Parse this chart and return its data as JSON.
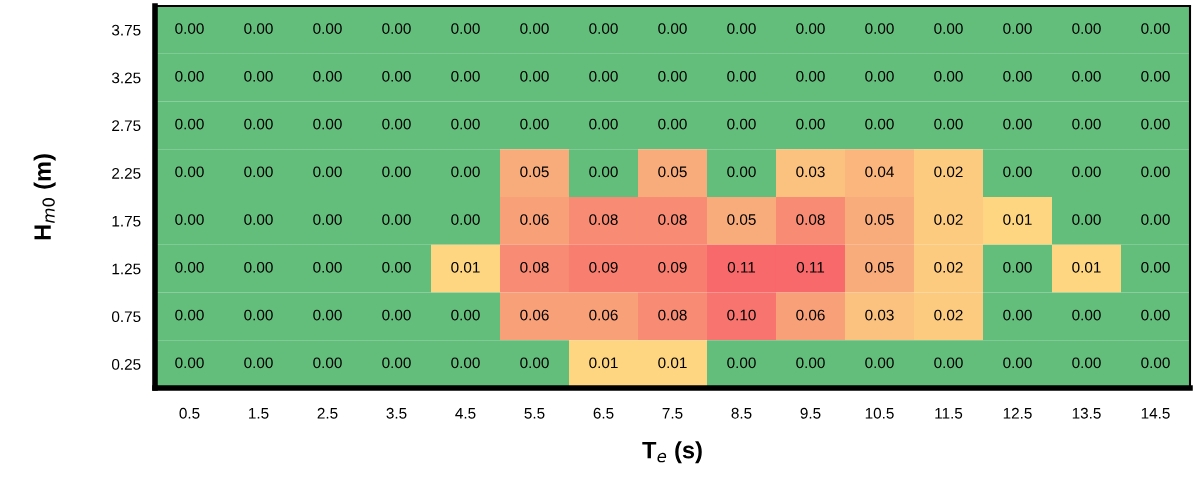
{
  "chart_data": {
    "type": "heatmap",
    "xlabel": "T$_{e}$ (s)",
    "ylabel": "H$_{m0}$ (m)",
    "categories": [
      "0.5",
      "1.5",
      "2.5",
      "3.5",
      "4.5",
      "5.5",
      "6.5",
      "7.5",
      "8.5",
      "9.5",
      "10.5",
      "11.5",
      "12.5",
      "13.5",
      "14.5"
    ],
    "y_categories": [
      "3.75",
      "3.25",
      "2.75",
      "2.25",
      "1.75",
      "1.25",
      "0.75",
      "0.25"
    ],
    "cells": [
      [
        0,
        0,
        0,
        0,
        0,
        0,
        0,
        0,
        0,
        0,
        0,
        0,
        0,
        0,
        0
      ],
      [
        0,
        0,
        0,
        0,
        0,
        0,
        0,
        0,
        0,
        0,
        0,
        0,
        0,
        0,
        0
      ],
      [
        0,
        0,
        0,
        0,
        0,
        0,
        0,
        0,
        0,
        0,
        0,
        0,
        0,
        0,
        0
      ],
      [
        0,
        0,
        0,
        0,
        0,
        0.05,
        0,
        0.05,
        0,
        0.03,
        0.04,
        0.02,
        0,
        0,
        0
      ],
      [
        0,
        0,
        0,
        0,
        0,
        0.06,
        0.08,
        0.08,
        0.05,
        0.08,
        0.05,
        0.02,
        0.01,
        0,
        0
      ],
      [
        0,
        0,
        0,
        0,
        0.01,
        0.08,
        0.09,
        0.09,
        0.11,
        0.11,
        0.05,
        0.02,
        0,
        0.01,
        0
      ],
      [
        0,
        0,
        0,
        0,
        0,
        0.06,
        0.06,
        0.08,
        0.1,
        0.06,
        0.03,
        0.02,
        0,
        0,
        0
      ],
      [
        0,
        0,
        0,
        0,
        0,
        0,
        0.01,
        0.01,
        0,
        0,
        0,
        0,
        0,
        0,
        0
      ]
    ],
    "cell_labels": [
      [
        "0.00",
        "0.00",
        "0.00",
        "0.00",
        "0.00",
        "0.00",
        "0.00",
        "0.00",
        "0.00",
        "0.00",
        "0.00",
        "0.00",
        "0.00",
        "0.00",
        "0.00"
      ],
      [
        "0.00",
        "0.00",
        "0.00",
        "0.00",
        "0.00",
        "0.00",
        "0.00",
        "0.00",
        "0.00",
        "0.00",
        "0.00",
        "0.00",
        "0.00",
        "0.00",
        "0.00"
      ],
      [
        "0.00",
        "0.00",
        "0.00",
        "0.00",
        "0.00",
        "0.00",
        "0.00",
        "0.00",
        "0.00",
        "0.00",
        "0.00",
        "0.00",
        "0.00",
        "0.00",
        "0.00"
      ],
      [
        "0.00",
        "0.00",
        "0.00",
        "0.00",
        "0.00",
        "0.05",
        "0.00",
        "0.05",
        "0.00",
        "0.03",
        "0.04",
        "0.02",
        "0.00",
        "0.00",
        "0.00"
      ],
      [
        "0.00",
        "0.00",
        "0.00",
        "0.00",
        "0.00",
        "0.06",
        "0.08",
        "0.08",
        "0.05",
        "0.08",
        "0.05",
        "0.02",
        "0.01",
        "0.00",
        "0.00"
      ],
      [
        "0.00",
        "0.00",
        "0.00",
        "0.00",
        "0.01",
        "0.08",
        "0.09",
        "0.09",
        "0.11",
        "0.11",
        "0.05",
        "0.02",
        "0.00",
        "0.01",
        "0.00"
      ],
      [
        "0.00",
        "0.00",
        "0.00",
        "0.00",
        "0.00",
        "0.06",
        "0.06",
        "0.08",
        "0.10",
        "0.06",
        "0.03",
        "0.02",
        "0.00",
        "0.00",
        "0.00"
      ],
      [
        "0.00",
        "0.00",
        "0.00",
        "0.00",
        "0.00",
        "0.00",
        "0.01",
        "0.01",
        "0.00",
        "0.00",
        "0.00",
        "0.00",
        "0.00",
        "0.00",
        "0.00"
      ]
    ],
    "data_labels": true,
    "grid": false,
    "legend": false
  }
}
